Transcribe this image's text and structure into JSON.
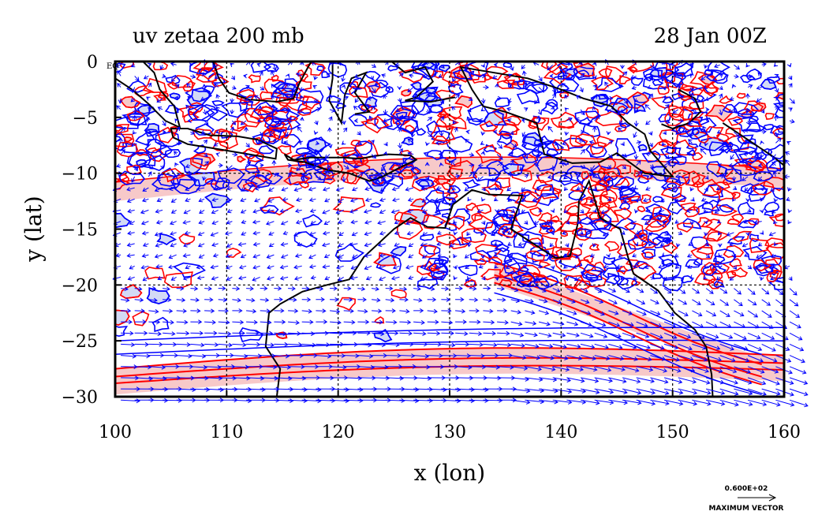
{
  "chart_data": {
    "type": "vector-contour-map",
    "title_left": "uv zetaa 200 mb",
    "title_right": "28 Jan 00Z",
    "xlabel": "x (lon)",
    "ylabel": "y (lat)",
    "xlim": [
      100,
      160
    ],
    "ylim": [
      -30,
      0
    ],
    "x_ticks": [
      "100",
      "110",
      "120",
      "130",
      "140",
      "150",
      "160"
    ],
    "y_ticks": [
      "0",
      "−5",
      "−10",
      "−15",
      "−20",
      "−25",
      "−30"
    ],
    "equator_label": "EQ",
    "grid_lon": [
      110,
      120,
      130,
      140,
      150
    ],
    "grid_lat": [
      -10,
      -20
    ],
    "reference_vector_value": "0.600E+02",
    "reference_vector_label": "MAXIMUM VECTOR",
    "colors": {
      "positive_contour": "#ff0000",
      "positive_fill": "#f7c9c9",
      "negative_contour": "#0000ff",
      "negative_fill": "#d3daf5",
      "vectors": "#0000ff",
      "coast": "#000000"
    }
  }
}
